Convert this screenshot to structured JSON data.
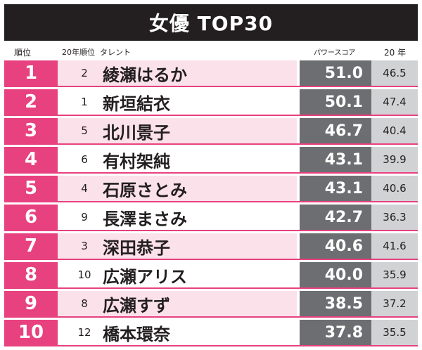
{
  "title": "女優 TOP30",
  "header": {
    "rank": "順位",
    "prev_rank": "20年順位",
    "talent": "タレント",
    "power_score": "パワースコア",
    "year20": "20 年"
  },
  "colors": {
    "accent": "#e8417f",
    "row_tint": "#fbe1ea",
    "score_bg": "#6d6e71",
    "prev_score_bg": "#d1d2d4",
    "title_bg": "#231f20"
  },
  "rows": [
    {
      "rank": "1",
      "prev": "2",
      "name": "綾瀬はるか",
      "power": "51.0",
      "y20": "46.5"
    },
    {
      "rank": "2",
      "prev": "1",
      "name": "新垣結衣",
      "power": "50.1",
      "y20": "47.4"
    },
    {
      "rank": "3",
      "prev": "5",
      "name": "北川景子",
      "power": "46.7",
      "y20": "40.4"
    },
    {
      "rank": "4",
      "prev": "6",
      "name": "有村架純",
      "power": "43.1",
      "y20": "39.9"
    },
    {
      "rank": "5",
      "prev": "4",
      "name": "石原さとみ",
      "power": "43.1",
      "y20": "40.6"
    },
    {
      "rank": "6",
      "prev": "9",
      "name": "長澤まさみ",
      "power": "42.7",
      "y20": "36.3"
    },
    {
      "rank": "7",
      "prev": "3",
      "name": "深田恭子",
      "power": "40.6",
      "y20": "41.6"
    },
    {
      "rank": "8",
      "prev": "10",
      "name": "広瀬アリス",
      "power": "40.0",
      "y20": "35.9"
    },
    {
      "rank": "9",
      "prev": "8",
      "name": "広瀬すず",
      "power": "38.5",
      "y20": "37.2"
    },
    {
      "rank": "10",
      "prev": "12",
      "name": "橋本環奈",
      "power": "37.8",
      "y20": "35.5"
    }
  ]
}
